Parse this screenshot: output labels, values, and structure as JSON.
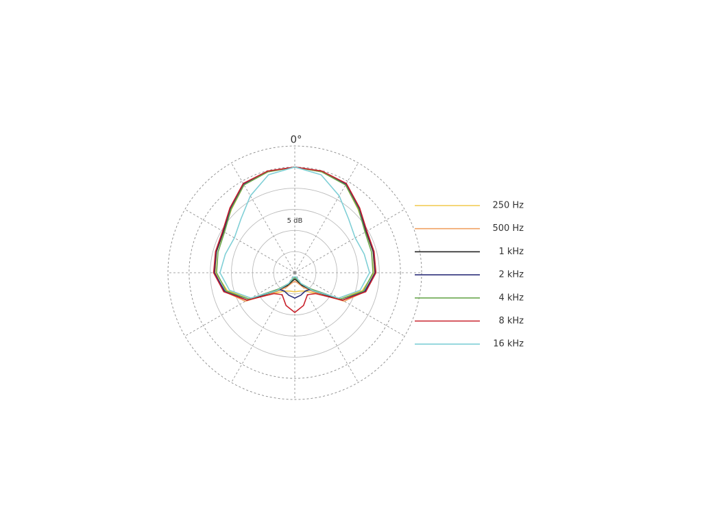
{
  "chart_data": {
    "type": "polar_line",
    "angle_label": "0°",
    "annotation": "5 dB",
    "theta": [
      0,
      15,
      30,
      45,
      60,
      75,
      90,
      105,
      120,
      135,
      150,
      165,
      180,
      195,
      210,
      225,
      240,
      255,
      270,
      285,
      300,
      315,
      330,
      345
    ],
    "rlim": [
      -25,
      5
    ],
    "rticks": [
      -20,
      -15,
      -10,
      -5,
      0,
      5
    ],
    "thetaticks": [
      0,
      30,
      60,
      90,
      120,
      150,
      180,
      210,
      240,
      270,
      300,
      330
    ],
    "grid": true,
    "legend": "right",
    "series": [
      {
        "name": "250 Hz",
        "color": "#f2c84b",
        "values": [
          0,
          -0.3,
          -1,
          -3.8,
          -5.6,
          -5.8,
          -6.2,
          -8.5,
          -13,
          -18,
          -20,
          -20.5,
          -20.5,
          -20.5,
          -20,
          -18,
          -13,
          -8.5,
          -6.2,
          -5.8,
          -5.6,
          -3.8,
          -1,
          -0.3
        ]
      },
      {
        "name": "500 Hz",
        "color": "#f0a060",
        "values": [
          0,
          -0.3,
          -0.9,
          -3.6,
          -5.5,
          -5.8,
          -6,
          -7.8,
          -11.5,
          -18.5,
          -21,
          -22.5,
          -23,
          -22.5,
          -21,
          -18.5,
          -11.5,
          -7.8,
          -6,
          -5.8,
          -5.5,
          -3.6,
          -0.9,
          -0.3
        ]
      },
      {
        "name": "1 kHz",
        "color": "#222222",
        "values": [
          0,
          -0.2,
          -0.8,
          -3.5,
          -5.5,
          -5.8,
          -6,
          -7.8,
          -12,
          -19,
          -21.5,
          -23,
          -23.5,
          -23,
          -21.5,
          -19,
          -12,
          -7.8,
          -6,
          -5.8,
          -5.5,
          -3.5,
          -0.8,
          -0.2
        ]
      },
      {
        "name": "2 kHz",
        "color": "#2b2f7a",
        "values": [
          0,
          -0.2,
          -0.8,
          -3.5,
          -5.4,
          -5.7,
          -6,
          -7.9,
          -12.5,
          -19.5,
          -20,
          -19.5,
          -19,
          -19.5,
          -20,
          -19.5,
          -12.5,
          -7.9,
          -6,
          -5.7,
          -5.4,
          -3.5,
          -0.8,
          -0.2
        ]
      },
      {
        "name": "4 kHz",
        "color": "#6aa84f",
        "values": [
          0,
          -0.3,
          -1,
          -3.7,
          -5.8,
          -6.2,
          -6.5,
          -8.2,
          -12.5,
          -19.5,
          -22,
          -23.5,
          -24,
          -23.5,
          -22,
          -19.5,
          -12.5,
          -8.2,
          -6.5,
          -6.2,
          -5.8,
          -3.7,
          -1,
          -0.3
        ]
      },
      {
        "name": "8 kHz",
        "color": "#c8202a",
        "values": [
          0,
          -0.1,
          -0.6,
          -3.3,
          -5.3,
          -5.6,
          -5.8,
          -7.6,
          -12,
          -18,
          -19,
          -17,
          -15.6,
          -17,
          -19,
          -18,
          -12,
          -7.6,
          -5.8,
          -5.6,
          -5.3,
          -3.3,
          -0.6,
          -0.1
        ]
      },
      {
        "name": "16 kHz",
        "color": "#7fcfd6",
        "values": [
          0,
          -1,
          -4,
          -7,
          -8.5,
          -8,
          -7.3,
          -9,
          -13,
          -19,
          -22,
          -24,
          -24,
          -24,
          -22,
          -19,
          -13,
          -9,
          -7.3,
          -8,
          -8.5,
          -7,
          -4,
          -1
        ]
      }
    ]
  }
}
